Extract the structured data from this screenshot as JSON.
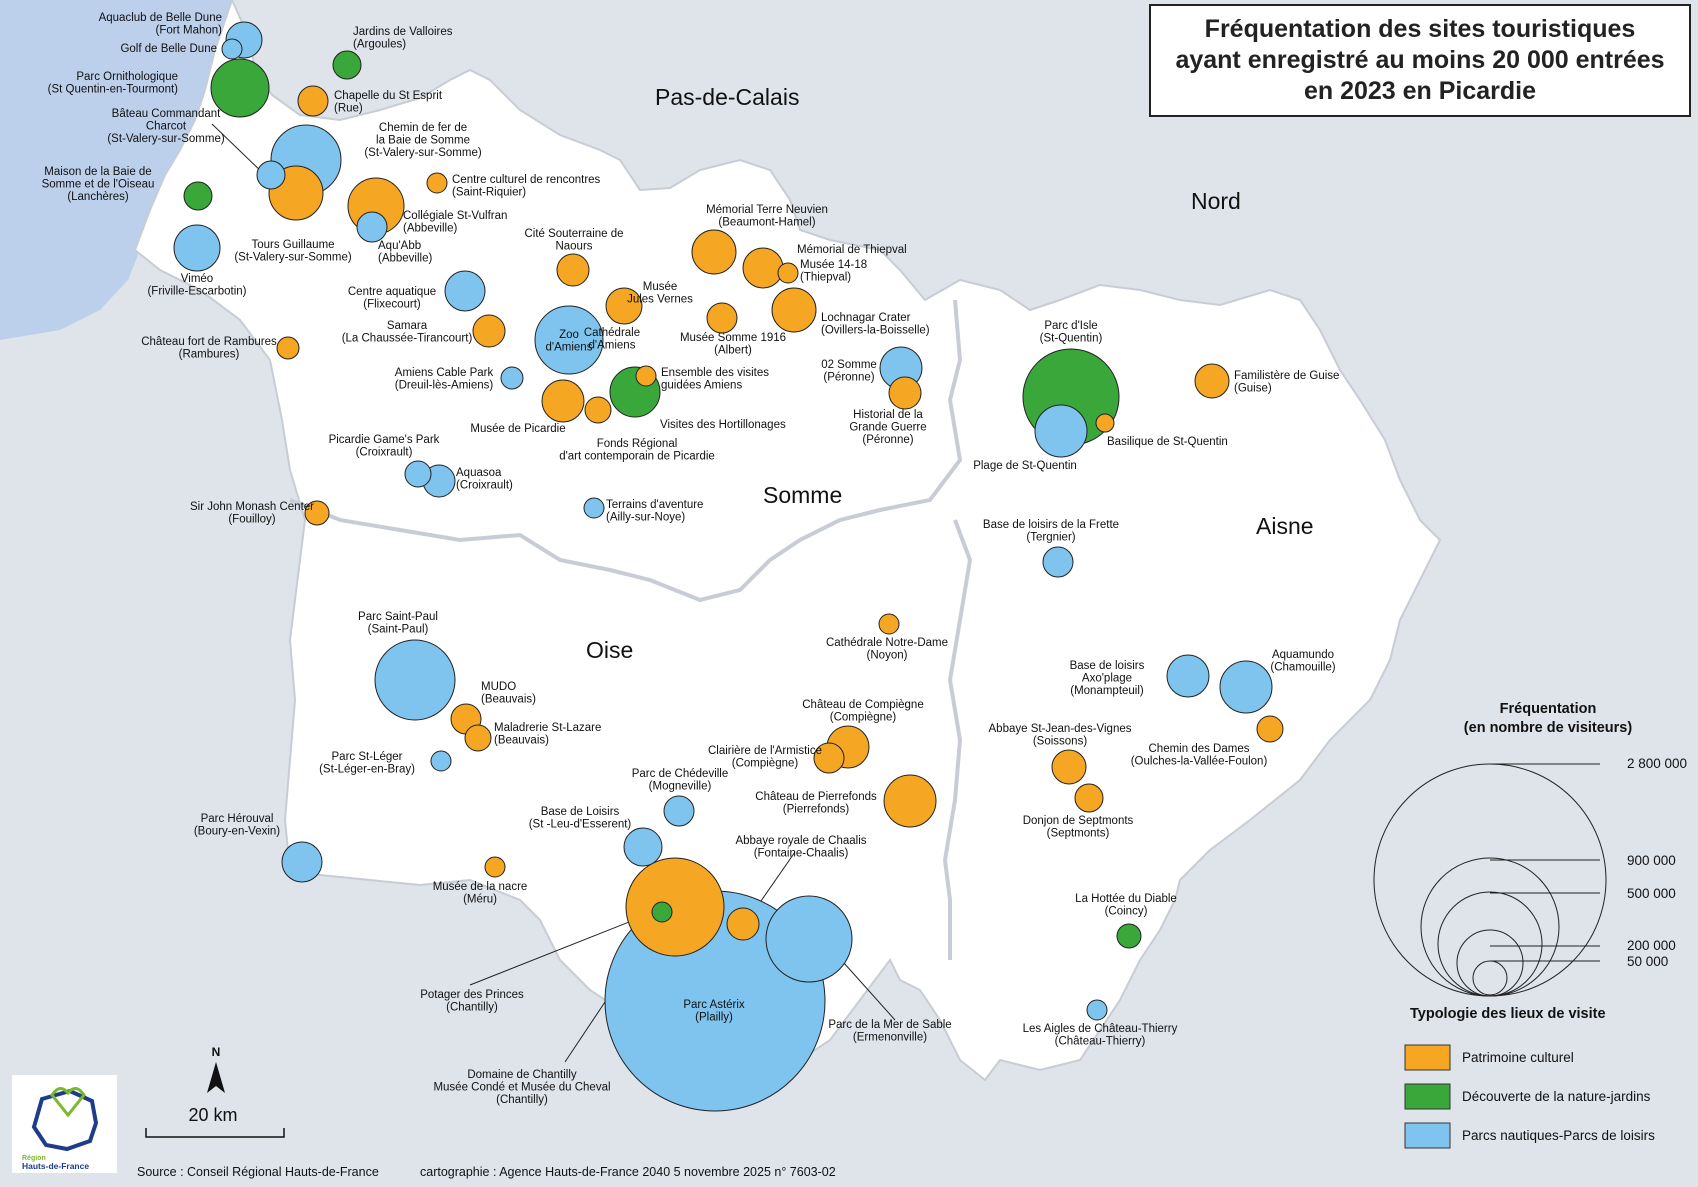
{
  "title": {
    "line1": "Fréquentation des sites touristiques",
    "line2": "ayant enregistré au moins 20 000 entrées",
    "line3": "en 2023 en Picardie"
  },
  "colors": {
    "culturel": "#f5a623",
    "nature": "#3aa73a",
    "loisirs": "#7ec4ee",
    "sea": "#bcd0ec",
    "land": "#ffffff",
    "background": "#dfe3ea"
  },
  "departments": [
    {
      "id": "pas-de-calais",
      "label": "Pas-de-Calais"
    },
    {
      "id": "nord",
      "label": "Nord"
    },
    {
      "id": "somme",
      "label": "Somme"
    },
    {
      "id": "aisne",
      "label": "Aisne"
    },
    {
      "id": "oise",
      "label": "Oise"
    }
  ],
  "sites": [
    {
      "id": "aquaclub",
      "category": "loisirs",
      "label": [
        "Aquaclub de Belle Dune",
        "(Fort Mahon)"
      ]
    },
    {
      "id": "golf-belle-dune",
      "category": "loisirs",
      "label": [
        "Golf de Belle Dune"
      ]
    },
    {
      "id": "jardins-valloires",
      "category": "nature",
      "label": [
        "Jardins de Valloires",
        "(Argoules)"
      ]
    },
    {
      "id": "parc-ornithologique",
      "category": "nature",
      "label": [
        "Parc Ornithologique",
        "(St Quentin-en-Tourmont)"
      ]
    },
    {
      "id": "chapelle-st-esprit",
      "category": "culturel",
      "label": [
        "Chapelle du St Esprit",
        "(Rue)"
      ]
    },
    {
      "id": "bateau-charcot",
      "category": "loisirs",
      "label": [
        "Bâteau Commandant",
        "Charcot",
        "(St-Valery-sur-Somme)"
      ]
    },
    {
      "id": "chemin-fer-baie",
      "category": "loisirs",
      "label": [
        "Chemin de fer de",
        "la Baie de Somme",
        "(St-Valery-sur-Somme)"
      ]
    },
    {
      "id": "maison-baie",
      "category": "nature",
      "label": [
        "Maison de la Baie de",
        "Somme et de l'Oiseau",
        "(Lanchères)"
      ]
    },
    {
      "id": "centre-culturel-rencontres",
      "category": "culturel",
      "label": [
        "Centre culturel de rencontres",
        "(Saint-Riquier)"
      ]
    },
    {
      "id": "tours-guillaume",
      "category": "culturel",
      "label": [
        "Tours Guillaume",
        "(St-Valery-sur-Somme)"
      ]
    },
    {
      "id": "collegiale-st-vulfran",
      "category": "culturel",
      "label": [
        "Collégiale St-Vulfran",
        "(Abbeville)"
      ]
    },
    {
      "id": "aqu-abb",
      "category": "loisirs",
      "label": [
        "Aqu'Abb",
        "(Abbeville)"
      ]
    },
    {
      "id": "vimeo",
      "category": "loisirs",
      "label": [
        "Viméo",
        "(Friville-Escarbotin)"
      ]
    },
    {
      "id": "cite-souterraine",
      "category": "culturel",
      "label": [
        "Cité Souterraine de",
        "Naours"
      ]
    },
    {
      "id": "memorial-terre-neuvien",
      "category": "culturel",
      "label": [
        "Mémorial Terre Neuvien",
        "(Beaumont-Hamel)"
      ]
    },
    {
      "id": "memorial-thiepval",
      "category": "culturel",
      "label": [
        "Mémorial de Thiepval"
      ]
    },
    {
      "id": "musee-14-18",
      "category": "culturel",
      "label": [
        "Musée 14-18",
        "(Thiepval)"
      ]
    },
    {
      "id": "centre-aquatique",
      "category": "loisirs",
      "label": [
        "Centre aquatique",
        "(Flixecourt)"
      ]
    },
    {
      "id": "musee-jules-vernes",
      "category": "culturel",
      "label": [
        "Musée",
        "Jules Vernes"
      ]
    },
    {
      "id": "lochnagar",
      "category": "culturel",
      "label": [
        "Lochnagar Crater",
        "(Ovillers-la-Boisselle)"
      ]
    },
    {
      "id": "samara",
      "category": "culturel",
      "label": [
        "Samara",
        "(La Chaussée-Tirancourt)"
      ]
    },
    {
      "id": "zoo-amiens",
      "category": "loisirs",
      "label": [
        "Zoo",
        "d'Amiens"
      ]
    },
    {
      "id": "cathedrale-amiens",
      "category": "culturel",
      "label": [
        "Cathédrale",
        "d'Amiens"
      ]
    },
    {
      "id": "musee-somme-1916",
      "category": "culturel",
      "label": [
        "Musée Somme 1916",
        "(Albert)"
      ]
    },
    {
      "id": "chateau-rambures",
      "category": "culturel",
      "label": [
        "Château fort de Rambures",
        "(Rambures)"
      ]
    },
    {
      "id": "02-somme",
      "category": "loisirs",
      "label": [
        "02 Somme",
        "(Péronne)"
      ]
    },
    {
      "id": "ensemble-visites",
      "category": "culturel",
      "label": [
        "Ensemble des visites",
        "guidées Amiens"
      ]
    },
    {
      "id": "amiens-cable-park",
      "category": "loisirs",
      "label": [
        "Amiens Cable Park",
        "(Dreuil-lès-Amiens)"
      ]
    },
    {
      "id": "historial",
      "category": "culturel",
      "label": [
        "Historial de la",
        "Grande Guerre",
        "(Péronne)"
      ]
    },
    {
      "id": "visites-hortillonages",
      "category": "nature",
      "label": [
        "Visites des Hortillonages"
      ]
    },
    {
      "id": "musee-picardie",
      "category": "culturel",
      "label": [
        "Musée de Picardie"
      ]
    },
    {
      "id": "frac",
      "category": "culturel",
      "label": [
        "Fonds Régional",
        "d'art contemporain de Picardie"
      ]
    },
    {
      "id": "picardie-games-park",
      "category": "loisirs",
      "label": [
        "Picardie Game's Park",
        "(Croixrault)"
      ]
    },
    {
      "id": "aquasoa",
      "category": "loisirs",
      "label": [
        "Aquasoa",
        "(Croixrault)"
      ]
    },
    {
      "id": "sir-john-monash",
      "category": "culturel",
      "label": [
        "Sir John Monash Center",
        "(Fouilloy)"
      ]
    },
    {
      "id": "terrains-aventure",
      "category": "loisirs",
      "label": [
        "Terrains d'aventure",
        "(Ailly-sur-Noye)"
      ]
    },
    {
      "id": "parc-d-isle",
      "category": "nature",
      "label": [
        "Parc d'Isle",
        "(St-Quentin)"
      ]
    },
    {
      "id": "familistere",
      "category": "culturel",
      "label": [
        "Familistère de Guise",
        "(Guise)"
      ]
    },
    {
      "id": "basilique-st-quentin",
      "category": "culturel",
      "label": [
        "Basilique de St-Quentin"
      ]
    },
    {
      "id": "plage-st-quentin",
      "category": "loisirs",
      "label": [
        "Plage de St-Quentin"
      ]
    },
    {
      "id": "frette",
      "category": "loisirs",
      "label": [
        "Base de loisirs de la Frette",
        "(Tergnier)"
      ]
    },
    {
      "id": "cathedrale-noyon",
      "category": "culturel",
      "label": [
        "Cathédrale Notre-Dame",
        "(Noyon)"
      ]
    },
    {
      "id": "parc-saint-paul",
      "category": "loisirs",
      "label": [
        "Parc Saint-Paul",
        "(Saint-Paul)"
      ]
    },
    {
      "id": "mudo",
      "category": "culturel",
      "label": [
        "MUDO",
        "(Beauvais)"
      ]
    },
    {
      "id": "maladrerie",
      "category": "culturel",
      "label": [
        "Maladrerie St-Lazare",
        "(Beauvais)"
      ]
    },
    {
      "id": "parc-st-leger",
      "category": "loisirs",
      "label": [
        "Parc St-Léger",
        "(St-Léger-en-Bray)"
      ]
    },
    {
      "id": "chateau-compiegne",
      "category": "culturel",
      "label": [
        "Château de Compiègne",
        "(Compiègne)"
      ]
    },
    {
      "id": "clairiere-armistice",
      "category": "culturel",
      "label": [
        "Clairière de l'Armistice",
        "(Compiègne)"
      ]
    },
    {
      "id": "axo-plage",
      "category": "loisirs",
      "label": [
        "Base de loisirs",
        "Axo'plage",
        "(Monampteuil)"
      ]
    },
    {
      "id": "aquamundo",
      "category": "loisirs",
      "label": [
        "Aquamundo",
        "(Chamouille)"
      ]
    },
    {
      "id": "chemin-des-dames",
      "category": "culturel",
      "label": [
        "Chemin des Dames",
        "(Oulches-la-Vallée-Foulon)"
      ]
    },
    {
      "id": "abbaye-st-jean",
      "category": "culturel",
      "label": [
        "Abbaye St-Jean-des-Vignes",
        "(Soissons)"
      ]
    },
    {
      "id": "donjon-septmonts",
      "category": "culturel",
      "label": [
        "Donjon de Septmonts",
        "(Septmonts)"
      ]
    },
    {
      "id": "parc-chedeville",
      "category": "loisirs",
      "label": [
        "Parc de Chédeville",
        "(Mogneville)"
      ]
    },
    {
      "id": "chateau-pierrefonds",
      "category": "culturel",
      "label": [
        "Château de Pierrefonds",
        "(Pierrefonds)"
      ]
    },
    {
      "id": "base-st-leu",
      "category": "loisirs",
      "label": [
        "Base de Loisirs",
        "(St -Leu-d'Esserent)"
      ]
    },
    {
      "id": "abbaye-chaalis",
      "category": "culturel",
      "label": [
        "Abbaye royale de Chaalis",
        "(Fontaine-Chaalis)"
      ]
    },
    {
      "id": "parc-herouval",
      "category": "loisirs",
      "label": [
        "Parc Hérouval",
        "(Boury-en-Vexin)"
      ]
    },
    {
      "id": "musee-nacre",
      "category": "culturel",
      "label": [
        "Musée de la nacre",
        "(Méru)"
      ]
    },
    {
      "id": "domaine-chantilly",
      "category": "culturel",
      "label": [
        "Domaine de Chantilly",
        "Musée Condé et Musée du Cheval",
        "(Chantilly)"
      ]
    },
    {
      "id": "potager-princes",
      "category": "nature",
      "label": [
        "Potager des Princes",
        "(Chantilly)"
      ]
    },
    {
      "id": "parc-asterix",
      "category": "loisirs",
      "label": [
        "Parc Astérix",
        "(Plailly)"
      ]
    },
    {
      "id": "mer-de-sable",
      "category": "loisirs",
      "label": [
        "Parc de la Mer de Sable",
        "(Ermenonville)"
      ]
    },
    {
      "id": "hottee-diable",
      "category": "nature",
      "label": [
        "La Hottée du Diable",
        "(Coincy)"
      ]
    },
    {
      "id": "aigles-chateau-thierry",
      "category": "loisirs",
      "label": [
        "Les Aigles de Château-Thierry",
        "(Château-Thierry)"
      ]
    }
  ],
  "legend": {
    "size_title": [
      "Fréquentation",
      "(en nombre de visiteurs)"
    ],
    "size_values": [
      "2 800 000",
      "900 000",
      "500 000",
      "200 000",
      "50 000"
    ],
    "type_title": "Typologie des lieux de visite",
    "types": [
      {
        "key": "culturel",
        "label": "Patrimoine culturel"
      },
      {
        "key": "nature",
        "label": "Découverte de la nature-jardins"
      },
      {
        "key": "loisirs",
        "label": "Parcs nautiques-Parcs de loisirs"
      }
    ]
  },
  "north_label": "N",
  "scale_label": "20 km",
  "logo": {
    "line1": "Région",
    "line2": "Hauts-de-France"
  },
  "source": "Source : Conseil Régional Hauts-de-France",
  "credits": "cartographie : Agence Hauts-de-France 2040 5 novembre 2025   n° 7603-02"
}
